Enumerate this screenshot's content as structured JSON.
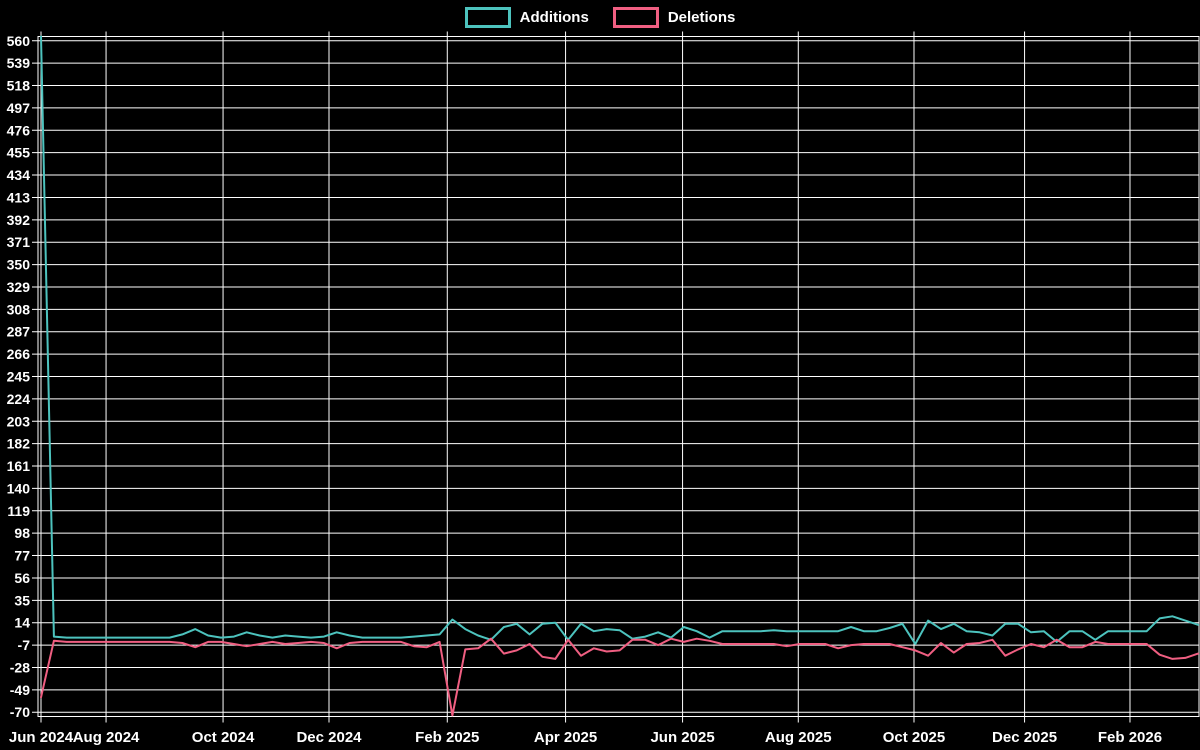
{
  "legend": {
    "items": [
      {
        "label": "Additions",
        "color": "#4DC3BE"
      },
      {
        "label": "Deletions",
        "color": "#F05F82"
      }
    ]
  },
  "chart_data": {
    "type": "line",
    "title": "",
    "background": "#000000",
    "grid_color": "#ffffff",
    "text_color": "#ffffff",
    "grid": true,
    "legend_position": "top-center",
    "x_unit": "weeks since Jun 2024",
    "ylim": [
      -74,
      564
    ],
    "y_ticks": [
      560,
      539,
      518,
      497,
      476,
      455,
      434,
      413,
      392,
      371,
      350,
      329,
      308,
      287,
      266,
      245,
      224,
      203,
      182,
      161,
      140,
      119,
      98,
      77,
      56,
      35,
      14,
      -7,
      -28,
      -49,
      -70
    ],
    "x_ticks": [
      {
        "label": "Jun 2024",
        "week": 0
      },
      {
        "label": "Aug 2024",
        "week": 5.06
      },
      {
        "label": "Oct 2024",
        "week": 14.16
      },
      {
        "label": "Dec 2024",
        "week": 22.4
      },
      {
        "label": "Feb 2025",
        "week": 31.6
      },
      {
        "label": "Apr 2025",
        "week": 40.8
      },
      {
        "label": "Jun 2025",
        "week": 49.9
      },
      {
        "label": "Aug 2025",
        "week": 58.9
      },
      {
        "label": "Oct 2025",
        "week": 67.9
      },
      {
        "label": "Dec 2025",
        "week": 76.5
      },
      {
        "label": "Feb 2026",
        "week": 84.7
      }
    ],
    "series": [
      {
        "name": "Additions",
        "color": "#4DC3BE",
        "values": [
          564,
          1,
          0,
          0,
          0,
          0,
          0,
          0,
          0,
          0,
          0,
          3,
          8,
          2,
          0,
          1,
          5,
          2,
          0,
          2,
          1,
          0,
          1,
          5,
          2,
          0,
          0,
          0,
          0,
          1,
          2,
          3,
          17,
          8,
          2,
          -2,
          10,
          13,
          3,
          13,
          14,
          -2,
          13,
          6,
          8,
          7,
          -1,
          1,
          5,
          0,
          10,
          6,
          0,
          6,
          6,
          6,
          6,
          7,
          6,
          6,
          6,
          6,
          6,
          10,
          6,
          6,
          9,
          13,
          -6,
          16,
          8,
          13,
          6,
          5,
          2,
          13,
          13,
          5,
          6,
          -4,
          6,
          6,
          -2,
          6,
          6,
          6,
          6,
          18,
          20,
          16,
          12
        ]
      },
      {
        "name": "Deletions",
        "color": "#F05F82",
        "values": [
          -56,
          -3,
          -4,
          -4,
          -4,
          -4,
          -4,
          -4,
          -4,
          -4,
          -4,
          -5,
          -9,
          -4,
          -4,
          -6,
          -8,
          -6,
          -4,
          -6,
          -5,
          -4,
          -5,
          -10,
          -5,
          -4,
          -4,
          -4,
          -4,
          -8,
          -9,
          -4,
          -73,
          -11,
          -10,
          -1,
          -15,
          -12,
          -6,
          -18,
          -20,
          -2,
          -17,
          -10,
          -13,
          -12,
          -2,
          -2,
          -7,
          -1,
          -4,
          -1,
          -3,
          -6,
          -6,
          -6,
          -6,
          -6,
          -8,
          -6,
          -6,
          -6,
          -10,
          -7,
          -6,
          -6,
          -6,
          -9,
          -12,
          -17,
          -5,
          -14,
          -6,
          -5,
          -2,
          -17,
          -11,
          -6,
          -9,
          -2,
          -9,
          -9,
          -4,
          -6,
          -6,
          -6,
          -6,
          -16,
          -20,
          -19,
          -15
        ]
      }
    ]
  }
}
